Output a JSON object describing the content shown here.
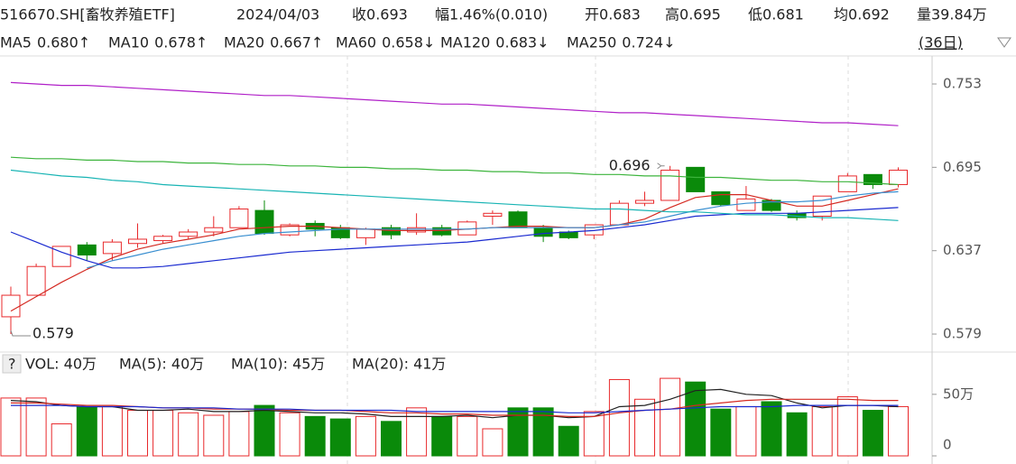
{
  "header": {
    "symbol": "516670.SH[畜牧养殖ETF]",
    "date": "2024/04/03",
    "quote": [
      {
        "label": "收",
        "value": "0.693",
        "color": "#e8282b"
      },
      {
        "label": "幅",
        "value": "1.46%(0.010)",
        "color": "#e8282b"
      },
      {
        "label": "开",
        "value": "0.683",
        "color": "#222222"
      },
      {
        "label": "高",
        "value": "0.695",
        "color": "#e8282b"
      },
      {
        "label": "低",
        "value": "0.681",
        "color": "#0a8a0a"
      },
      {
        "label": "均",
        "value": "0.692",
        "color": "#e8282b"
      },
      {
        "label": "量39.84万",
        "value": "",
        "color": "#222222"
      }
    ],
    "period": "(36日)"
  },
  "chart_data": [
    {
      "type": "candlestick",
      "open": [
        0.591,
        0.606,
        0.626,
        0.641,
        0.635,
        0.642,
        0.644,
        0.647,
        0.65,
        0.653,
        0.665,
        0.648,
        0.656,
        0.653,
        0.646,
        0.653,
        0.65,
        0.653,
        0.648,
        0.661,
        0.664,
        0.653,
        0.65,
        0.648,
        0.655,
        0.67,
        0.672,
        0.695,
        0.678,
        0.665,
        0.672,
        0.663,
        0.661,
        0.678,
        0.69,
        0.683
      ],
      "high": [
        0.612,
        0.628,
        0.64,
        0.643,
        0.645,
        0.656,
        0.648,
        0.652,
        0.661,
        0.668,
        0.672,
        0.656,
        0.658,
        0.655,
        0.653,
        0.655,
        0.663,
        0.655,
        0.658,
        0.665,
        0.665,
        0.655,
        0.651,
        0.655,
        0.672,
        0.678,
        0.696,
        0.695,
        0.678,
        0.682,
        0.673,
        0.665,
        0.675,
        0.691,
        0.69,
        0.695
      ],
      "low": [
        0.579,
        0.606,
        0.626,
        0.63,
        0.63,
        0.639,
        0.642,
        0.645,
        0.647,
        0.653,
        0.648,
        0.647,
        0.647,
        0.645,
        0.641,
        0.645,
        0.648,
        0.647,
        0.648,
        0.655,
        0.653,
        0.643,
        0.645,
        0.645,
        0.655,
        0.668,
        0.672,
        0.678,
        0.668,
        0.665,
        0.664,
        0.658,
        0.658,
        0.678,
        0.68,
        0.681
      ],
      "close": [
        0.606,
        0.626,
        0.64,
        0.634,
        0.643,
        0.645,
        0.647,
        0.65,
        0.653,
        0.666,
        0.649,
        0.655,
        0.652,
        0.646,
        0.652,
        0.648,
        0.653,
        0.648,
        0.657,
        0.663,
        0.653,
        0.647,
        0.646,
        0.655,
        0.67,
        0.672,
        0.693,
        0.678,
        0.669,
        0.673,
        0.665,
        0.66,
        0.675,
        0.689,
        0.683,
        0.693
      ],
      "up_color": "#e8282b",
      "down_color": "#0a8a0a",
      "ylim": [
        0.5696,
        0.7706
      ],
      "yticks": [
        0.579,
        0.637,
        0.695,
        0.753
      ],
      "annotations": [
        {
          "label": "0.579",
          "value": 0.579,
          "color": "#0a8a0a"
        },
        {
          "label": "0.696",
          "value": 0.696,
          "color": "#e8282b"
        }
      ],
      "series": [
        {
          "name": "MA5",
          "current": "0.680↑",
          "color": "#d42a22",
          "values": [
            0.595,
            0.605,
            0.615,
            0.624,
            0.632,
            0.638,
            0.642,
            0.645,
            0.648,
            0.652,
            0.653,
            0.654,
            0.654,
            0.653,
            0.652,
            0.651,
            0.651,
            0.651,
            0.652,
            0.653,
            0.654,
            0.654,
            0.653,
            0.653,
            0.655,
            0.659,
            0.667,
            0.674,
            0.676,
            0.676,
            0.672,
            0.668,
            0.668,
            0.672,
            0.676,
            0.68
          ]
        },
        {
          "name": "MA10",
          "current": "0.678↑",
          "color": "#3a8fd0",
          "values": [
            null,
            null,
            null,
            0.625,
            0.63,
            0.634,
            0.638,
            0.641,
            0.644,
            0.647,
            0.649,
            0.65,
            0.651,
            0.652,
            0.652,
            0.652,
            0.652,
            0.652,
            0.652,
            0.653,
            0.653,
            0.653,
            0.653,
            0.653,
            0.655,
            0.657,
            0.661,
            0.665,
            0.668,
            0.67,
            0.671,
            0.671,
            0.672,
            0.675,
            0.677,
            0.678
          ]
        },
        {
          "name": "MA20",
          "current": "0.667↑",
          "color": "#1a2ad0",
          "values": [
            0.65,
            0.643,
            0.636,
            0.63,
            0.625,
            0.625,
            0.626,
            0.628,
            0.63,
            0.632,
            0.634,
            0.636,
            0.637,
            0.638,
            0.639,
            0.64,
            0.641,
            0.642,
            0.643,
            0.645,
            0.647,
            0.649,
            0.65,
            0.651,
            0.653,
            0.655,
            0.658,
            0.661,
            0.662,
            0.663,
            0.663,
            0.663,
            0.664,
            0.665,
            0.666,
            0.667
          ]
        },
        {
          "name": "MA60",
          "current": "0.658↓",
          "color": "#18b4b4",
          "values": [
            0.693,
            0.691,
            0.689,
            0.688,
            0.686,
            0.685,
            0.683,
            0.682,
            0.681,
            0.68,
            0.679,
            0.678,
            0.677,
            0.676,
            0.675,
            0.674,
            0.673,
            0.672,
            0.671,
            0.67,
            0.669,
            0.668,
            0.667,
            0.666,
            0.666,
            0.665,
            0.664,
            0.664,
            0.663,
            0.662,
            0.662,
            0.661,
            0.66,
            0.66,
            0.659,
            0.658
          ]
        },
        {
          "name": "MA120",
          "current": "0.683↓",
          "color": "#3cb43c",
          "values": [
            0.702,
            0.701,
            0.701,
            0.7,
            0.7,
            0.699,
            0.699,
            0.698,
            0.698,
            0.697,
            0.697,
            0.696,
            0.696,
            0.695,
            0.695,
            0.694,
            0.694,
            0.693,
            0.693,
            0.692,
            0.692,
            0.691,
            0.691,
            0.69,
            0.69,
            0.689,
            0.689,
            0.688,
            0.688,
            0.687,
            0.686,
            0.686,
            0.685,
            0.685,
            0.684,
            0.683
          ]
        },
        {
          "name": "MA250",
          "current": "0.724↓",
          "color": "#b020c8",
          "values": [
            0.754,
            0.753,
            0.752,
            0.752,
            0.751,
            0.75,
            0.749,
            0.748,
            0.747,
            0.746,
            0.745,
            0.745,
            0.744,
            0.743,
            0.742,
            0.741,
            0.74,
            0.739,
            0.739,
            0.738,
            0.737,
            0.736,
            0.735,
            0.734,
            0.733,
            0.733,
            0.732,
            0.731,
            0.73,
            0.729,
            0.728,
            0.727,
            0.726,
            0.726,
            0.725,
            0.724
          ]
        }
      ]
    },
    {
      "type": "bar",
      "title": "VOL: 40万",
      "values": [
        47,
        47,
        26,
        40,
        40,
        37,
        37,
        35,
        33,
        36,
        41,
        35,
        32,
        30,
        32,
        28,
        39,
        32,
        32,
        22,
        39,
        39,
        24,
        36,
        62,
        46,
        63,
        60,
        38,
        40,
        44,
        35,
        40,
        48,
        37,
        40
      ],
      "up_color": "#e8282b",
      "down_color": "#0a8a0a",
      "ylim": [
        0,
        66
      ],
      "yticks": [
        0,
        {
          "value": 50,
          "label": "50万"
        }
      ],
      "series": [
        {
          "name": "MA(5): 40万",
          "color": "#222222",
          "values": [
            45,
            44,
            41,
            40,
            40,
            37,
            37,
            38,
            36,
            36,
            37,
            36,
            35,
            35,
            34,
            32,
            32,
            32,
            33,
            31,
            33,
            33,
            31,
            32,
            40,
            41,
            46,
            53,
            54,
            50,
            49,
            43,
            39,
            41,
            41,
            40
          ]
        },
        {
          "name": "MA(10): 45万",
          "color": "#d42a22",
          "values": [
            43,
            43,
            42,
            41,
            41,
            40,
            39,
            39,
            38,
            38,
            38,
            37,
            37,
            37,
            36,
            35,
            35,
            34,
            34,
            33,
            33,
            33,
            32,
            32,
            35,
            37,
            38,
            41,
            43,
            45,
            46,
            46,
            46,
            46,
            45,
            45
          ]
        },
        {
          "name": "MA(20): 41万",
          "color": "#1a2ad0",
          "values": [
            41,
            41,
            41,
            40,
            40,
            40,
            39,
            39,
            39,
            38,
            38,
            38,
            37,
            37,
            37,
            37,
            36,
            36,
            36,
            36,
            36,
            36,
            35,
            35,
            36,
            37,
            38,
            39,
            40,
            40,
            40,
            41,
            41,
            41,
            41,
            41
          ]
        }
      ]
    }
  ]
}
